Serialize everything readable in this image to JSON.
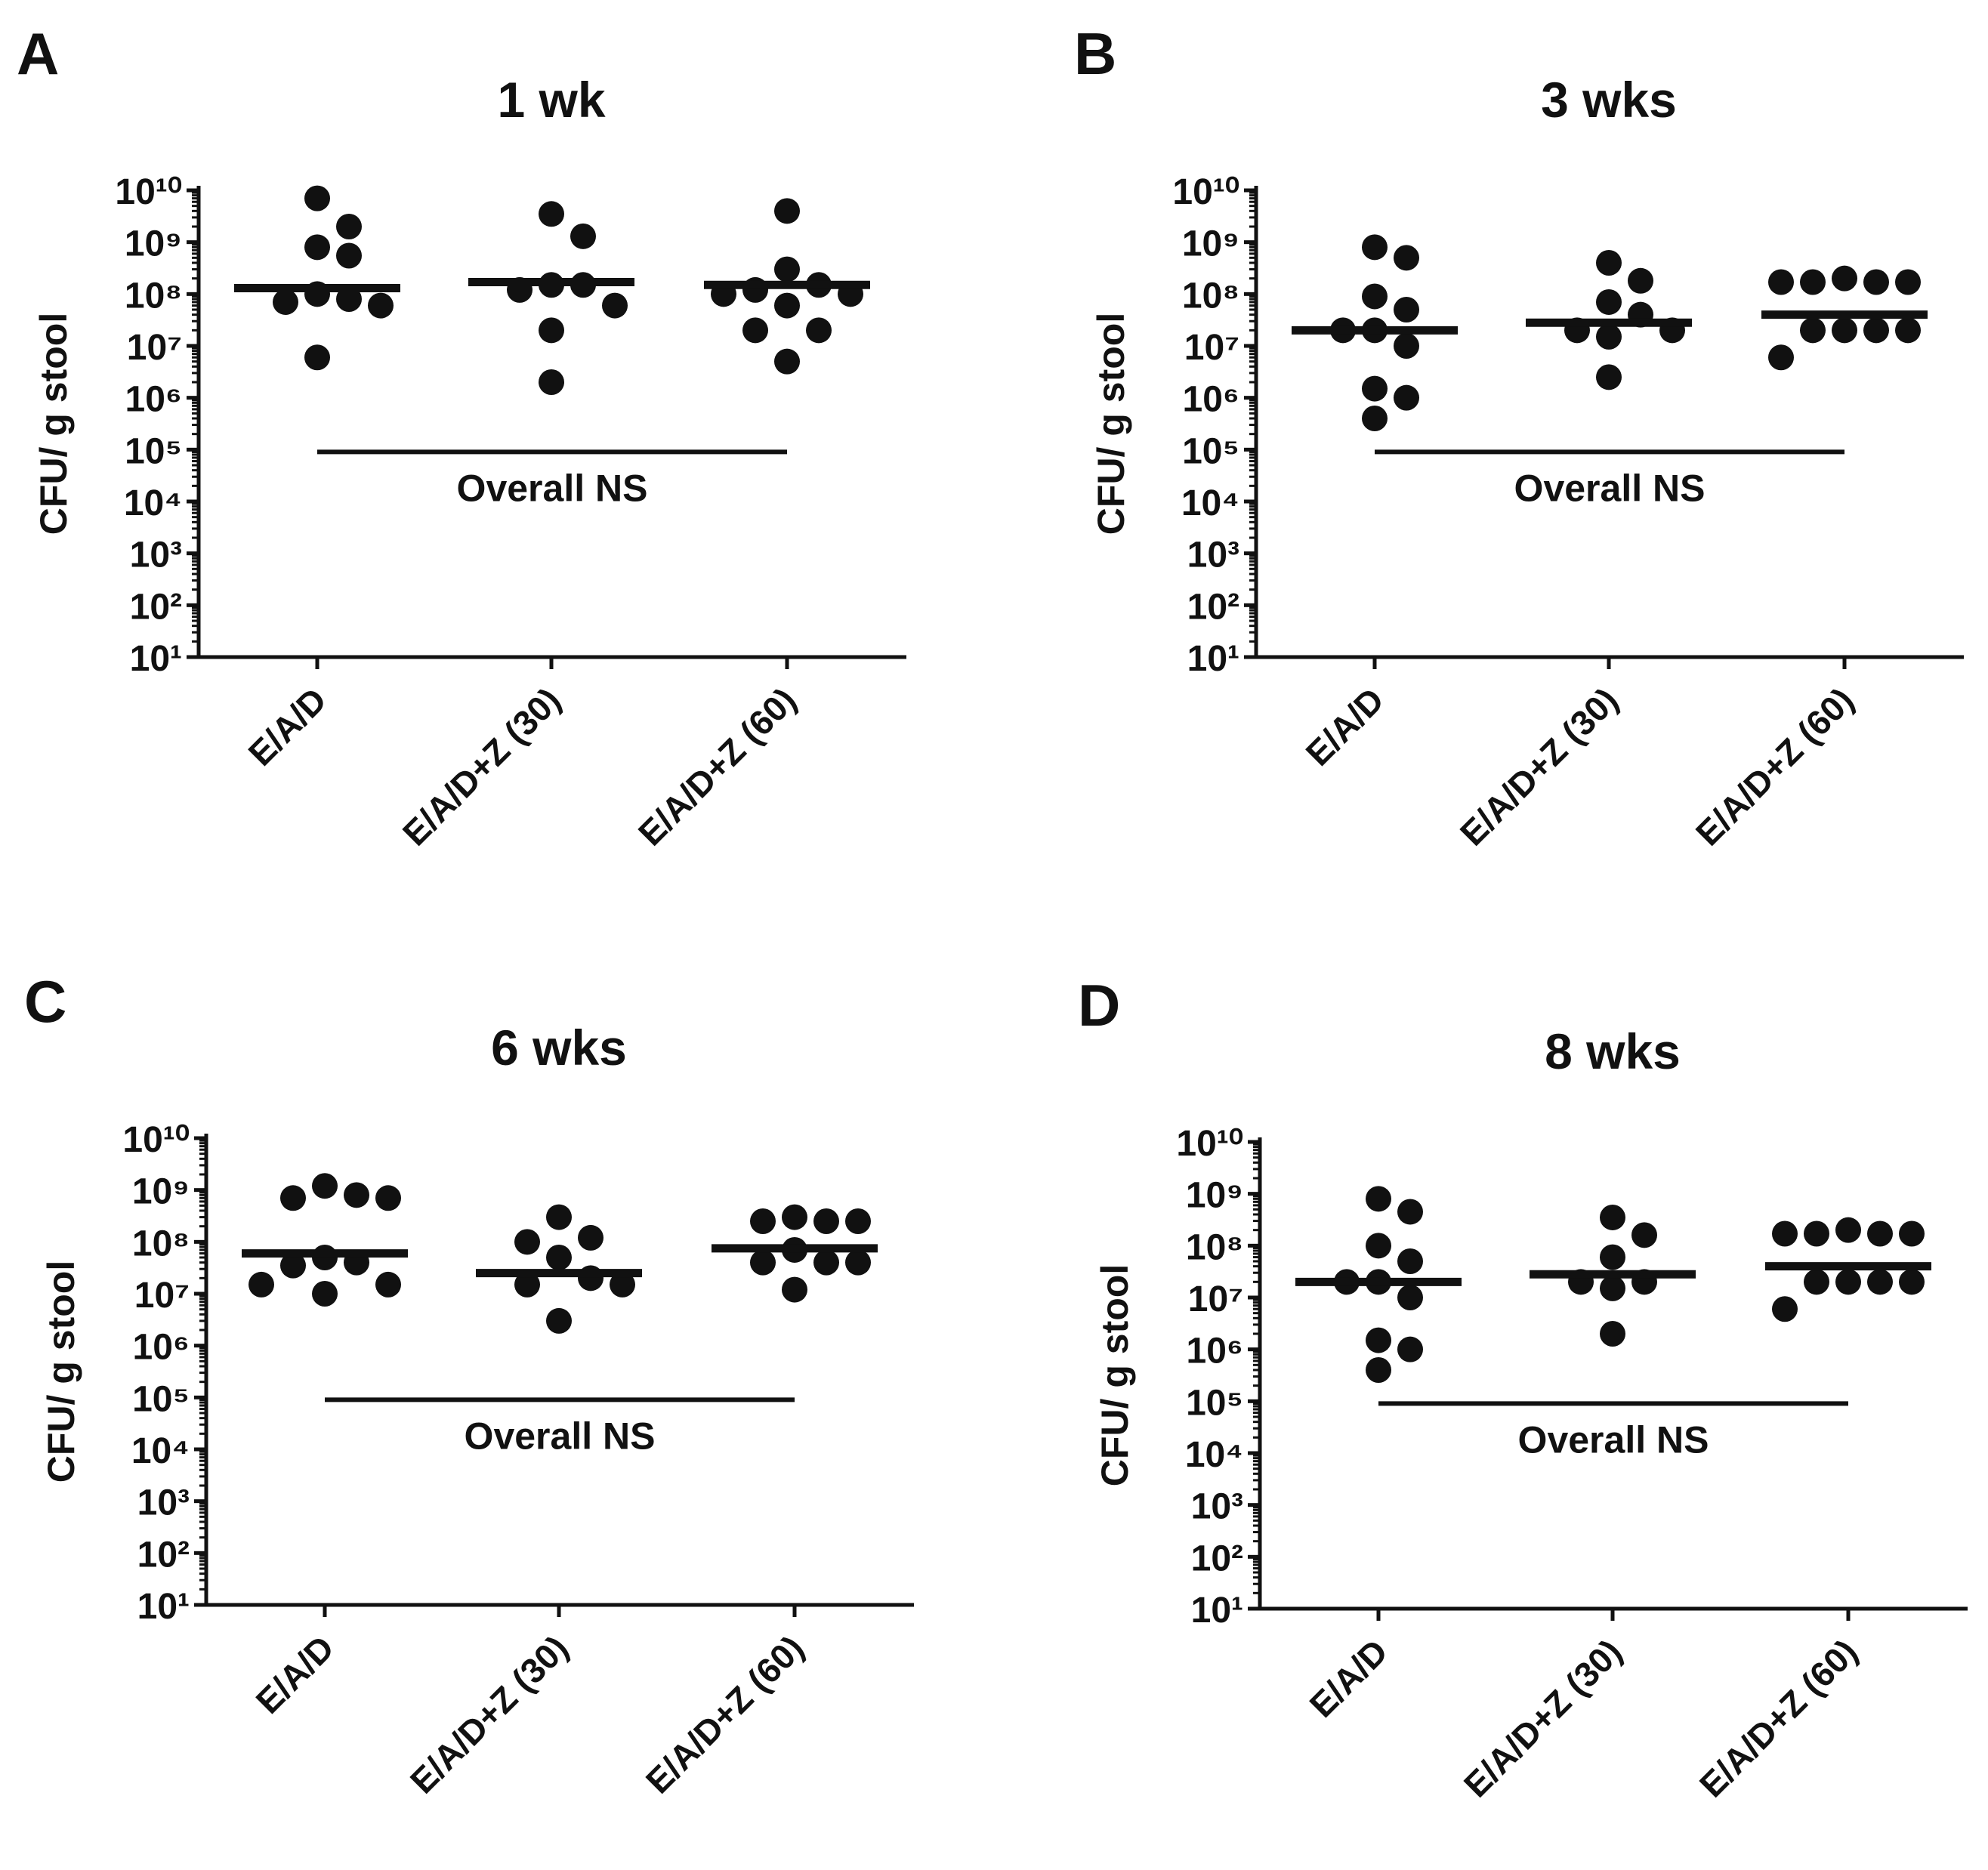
{
  "chart_data": [
    {
      "panel": "A",
      "title": "1 wk",
      "type": "scatter",
      "ylabel": "CFU/ g stool",
      "yscale": "log",
      "ylim": [
        10,
        10000000000
      ],
      "categories": [
        "E/A/D",
        "E/A/D+Z (30)",
        "E/A/D+Z (60)"
      ],
      "points": [
        [
          7000000000.0,
          2000000000.0,
          800000000.0,
          550000000.0,
          100000000.0,
          80000000.0,
          70000000.0,
          60000000.0,
          6000000.0
        ],
        [
          3500000000.0,
          1300000000.0,
          150000000.0,
          150000000.0,
          120000000.0,
          60000000.0,
          20000000.0,
          2000000.0
        ],
        [
          4000000000.0,
          300000000.0,
          150000000.0,
          120000000.0,
          100000000.0,
          100000000.0,
          60000000.0,
          20000000.0,
          20000000.0,
          5000000.0
        ]
      ],
      "medians": [
        130000000.0,
        170000000.0,
        150000000.0
      ],
      "annotation": "Overall NS"
    },
    {
      "panel": "B",
      "title": "3 wks",
      "type": "scatter",
      "ylabel": "CFU/ g stool",
      "yscale": "log",
      "ylim": [
        10,
        10000000000
      ],
      "categories": [
        "E/A/D",
        "E/A/D+Z (30)",
        "E/A/D+Z (60)"
      ],
      "points": [
        [
          800000000.0,
          500000000.0,
          90000000.0,
          50000000.0,
          20000000.0,
          20000000.0,
          10000000.0,
          1500000.0,
          1000000.0,
          400000.0
        ],
        [
          400000000.0,
          180000000.0,
          70000000.0,
          40000000.0,
          20000000.0,
          20000000.0,
          15000000.0,
          2500000.0
        ],
        [
          170000000.0,
          170000000.0,
          170000000.0,
          170000000.0,
          200000000.0,
          20000000.0,
          20000000.0,
          20000000.0,
          20000000.0,
          6000000.0
        ]
      ],
      "medians": [
        20000000.0,
        28000000.0,
        40000000.0
      ],
      "annotation": "Overall NS"
    },
    {
      "panel": "C",
      "title": "6 wks",
      "type": "scatter",
      "ylabel": "CFU/ g stool",
      "yscale": "log",
      "ylim": [
        10,
        10000000000
      ],
      "categories": [
        "E/A/D",
        "E/A/D+Z (30)",
        "E/A/D+Z (60)"
      ],
      "points": [
        [
          1200000000.0,
          800000000.0,
          700000000.0,
          700000000.0,
          50000000.0,
          40000000.0,
          35000000.0,
          15000000.0,
          15000000.0,
          10000000.0
        ],
        [
          300000000.0,
          120000000.0,
          100000000.0,
          50000000.0,
          20000000.0,
          15000000.0,
          15000000.0,
          3000000.0
        ],
        [
          300000000.0,
          250000000.0,
          250000000.0,
          250000000.0,
          70000000.0,
          40000000.0,
          40000000.0,
          40000000.0,
          12000000.0
        ]
      ],
      "medians": [
        60000000.0,
        25000000.0,
        75000000.0
      ],
      "annotation": "Overall NS"
    },
    {
      "panel": "D",
      "title": "8 wks",
      "type": "scatter",
      "ylabel": "CFU/ g stool",
      "yscale": "log",
      "ylim": [
        10,
        10000000000
      ],
      "categories": [
        "E/A/D",
        "E/A/D+Z (30)",
        "E/A/D+Z (60)"
      ],
      "points": [
        [
          800000000.0,
          450000000.0,
          100000000.0,
          50000000.0,
          20000000.0,
          20000000.0,
          10000000.0,
          1500000.0,
          1000000.0,
          400000.0
        ],
        [
          350000000.0,
          160000000.0,
          60000000.0,
          20000000.0,
          20000000.0,
          15000000.0,
          2000000.0
        ],
        [
          170000000.0,
          170000000.0,
          170000000.0,
          170000000.0,
          200000000.0,
          20000000.0,
          20000000.0,
          20000000.0,
          20000000.0,
          6000000.0
        ]
      ],
      "medians": [
        20000000.0,
        28000000.0,
        40000000.0
      ],
      "annotation": "Overall NS"
    }
  ]
}
